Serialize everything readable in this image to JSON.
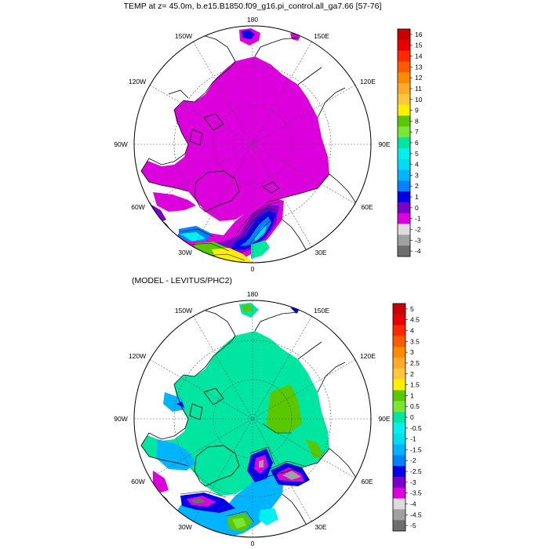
{
  "panels": [
    {
      "title": "TEMP at z=  45.0m, b.e15.B1850.f09_g16.pi_control.all_ga7.66 [57-76]",
      "longitude_labels": [
        "180",
        "150E",
        "120E",
        "90E",
        "60E",
        "30E",
        "0",
        "30W",
        "60W",
        "90W",
        "120W",
        "150W"
      ],
      "colorbar": {
        "ticks": [
          "16",
          "15",
          "14",
          "13",
          "12",
          "11",
          "10",
          "9",
          "8",
          "7",
          "6",
          "5",
          "4",
          "3",
          "2",
          "1",
          "0",
          "-1",
          "-2",
          "-3",
          "-4"
        ],
        "colors": [
          "#c80000",
          "#e60000",
          "#ff2800",
          "#ff5a00",
          "#ff8c00",
          "#ffaa28",
          "#ffc83c",
          "#fff000",
          "#5ac800",
          "#78e632",
          "#00e6a0",
          "#00f0f0",
          "#00dcf0",
          "#00b4ff",
          "#0082ff",
          "#0000e6",
          "#7800c8",
          "#dc00dc",
          "#dcdcdc",
          "#a0a0a0",
          "#6e6e6e"
        ]
      }
    },
    {
      "title": "(MODEL - LEVITUS/PHC2)",
      "longitude_labels": [
        "180",
        "150E",
        "120E",
        "90E",
        "60E",
        "30E",
        "0",
        "30W",
        "60W",
        "90W",
        "120W",
        "150W"
      ],
      "colorbar": {
        "ticks": [
          "5",
          "4.5",
          "4",
          "3.5",
          "3",
          "2.5",
          "2",
          "1.5",
          "1",
          "0.5",
          "0",
          "-0.5",
          "-1",
          "-1.5",
          "-2",
          "-2.5",
          "-3",
          "-3.5",
          "-4",
          "-4.5",
          "-5"
        ],
        "colors": [
          "#c80000",
          "#e60000",
          "#ff2800",
          "#ff5a00",
          "#ff8c00",
          "#ffaa28",
          "#ffc83c",
          "#fff000",
          "#5ac800",
          "#78e632",
          "#00e6a0",
          "#00f0f0",
          "#00dcf0",
          "#00b4ff",
          "#0082ff",
          "#0000e6",
          "#7800c8",
          "#dc00dc",
          "#dcdcdc",
          "#a0a0a0",
          "#6e6e6e"
        ]
      }
    }
  ],
  "colors": {
    "land": "#ffffff",
    "coast": "#000000",
    "grid": "#555555",
    "panel1_fill": "#dc00dc",
    "panel2_fill": "#00e6a0"
  }
}
